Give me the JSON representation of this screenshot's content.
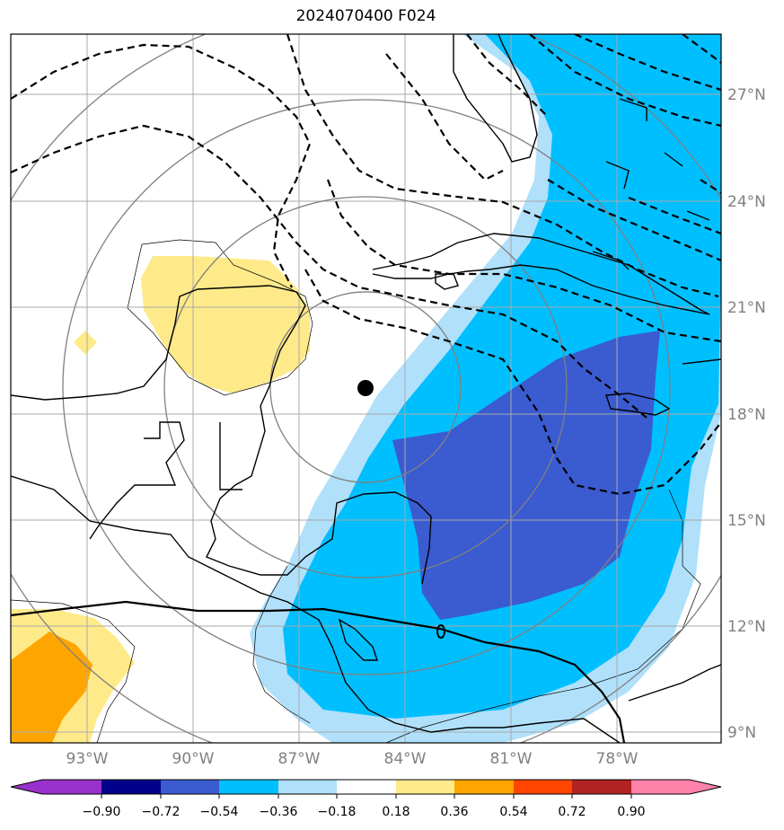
{
  "title": "2024070400 F024",
  "map": {
    "lon_labels": [
      "93°W",
      "90°W",
      "87°W",
      "84°W",
      "81°W",
      "78°W"
    ],
    "lat_labels": [
      "27°N",
      "24°N",
      "21°N",
      "18°N",
      "15°N",
      "12°N",
      "9°N"
    ],
    "lon_values": [
      -93,
      -90,
      -87,
      -84,
      -81,
      -78
    ],
    "lat_values": [
      27,
      24,
      21,
      18,
      15,
      12,
      9
    ],
    "extent": {
      "lon_min": -95,
      "lon_max": -75,
      "lat_min": 8.7,
      "lat_max": 28.6
    },
    "center_marker": {
      "lon": -85.1,
      "lat": 18.7
    },
    "dashed_contours": true,
    "grid": true
  },
  "colorbar": {
    "ticks": [
      "−0.90",
      "−0.72",
      "−0.54",
      "−0.36",
      "−0.18",
      "0.18",
      "0.36",
      "0.54",
      "0.72",
      "0.90"
    ],
    "colors": [
      "#9932cc",
      "#00008b",
      "#3b5bd1",
      "#00bfff",
      "#b0e0fa",
      "#ffffff",
      "#ffea8a",
      "#ffa500",
      "#ff4500",
      "#b22222",
      "#ff82ab"
    ],
    "extend": "both"
  }
}
